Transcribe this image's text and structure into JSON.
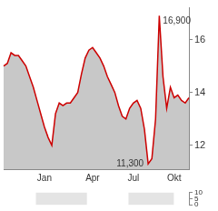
{
  "chart_data": [
    {
      "type": "line",
      "categories": [
        null,
        null,
        null,
        null,
        null,
        null,
        null,
        null,
        null,
        null,
        null,
        "Jan",
        null,
        null,
        null,
        null,
        null,
        null,
        null,
        null,
        null,
        null,
        null,
        null,
        "Apr",
        null,
        null,
        null,
        null,
        null,
        null,
        null,
        null,
        null,
        null,
        "Jul",
        null,
        null,
        null,
        null,
        null,
        null,
        null,
        null,
        null,
        null,
        "Okt",
        null,
        null,
        null,
        null
      ],
      "values": [
        15.0,
        15.1,
        15.5,
        15.4,
        15.4,
        15.2,
        15.0,
        14.6,
        14.2,
        13.7,
        13.2,
        12.7,
        12.3,
        12.0,
        13.2,
        13.6,
        13.5,
        13.6,
        13.6,
        13.8,
        14.0,
        14.7,
        15.3,
        15.6,
        15.7,
        15.5,
        15.3,
        15.0,
        14.6,
        14.3,
        14.0,
        13.5,
        13.1,
        13.0,
        13.4,
        13.6,
        13.7,
        13.4,
        12.6,
        11.3,
        11.5,
        13.0,
        16.9,
        14.6,
        13.4,
        14.2,
        13.8,
        13.9,
        13.7,
        13.6,
        13.8
      ],
      "color": "#cc0000",
      "ylim": [
        11.1,
        17.2
      ],
      "yticks": [
        12,
        14,
        16
      ],
      "grid": false,
      "annotations": [
        {
          "label": "16,900",
          "value": 16.9
        },
        {
          "label": "11,300",
          "value": 11.3
        }
      ]
    },
    {
      "type": "bar",
      "categories": [],
      "values": [],
      "ylim": [
        0,
        10
      ],
      "yticks": [
        0,
        5,
        10
      ],
      "grid": false
    }
  ]
}
